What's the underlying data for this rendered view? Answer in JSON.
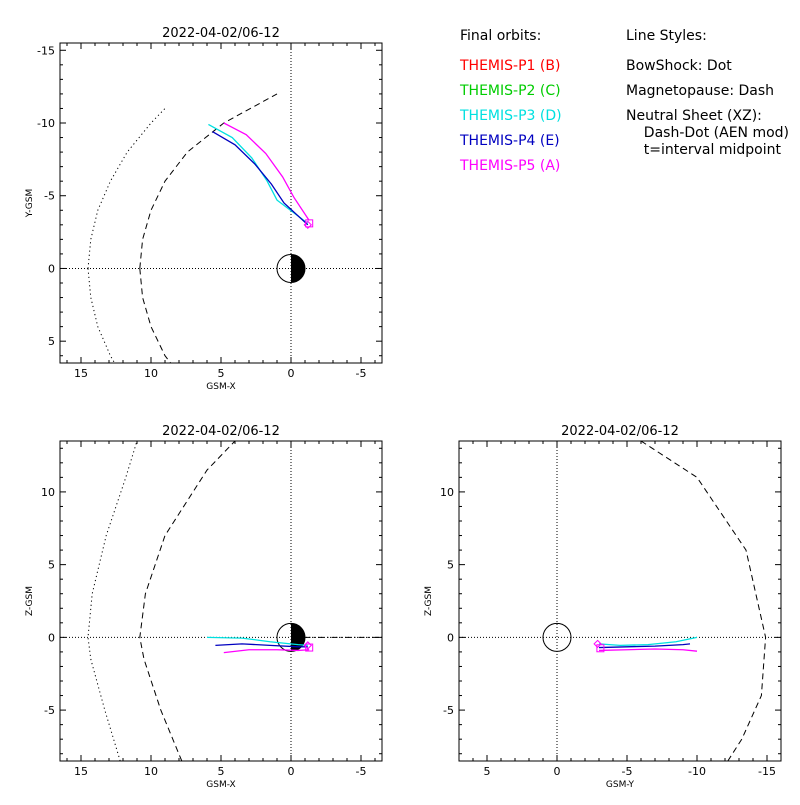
{
  "legend": {
    "orbits_title": "Final orbits:",
    "probes": [
      {
        "label": "THEMIS-P1 (B)",
        "color": "#ff0000"
      },
      {
        "label": "THEMIS-P2 (C)",
        "color": "#00cc00"
      },
      {
        "label": "THEMIS-P3 (D)",
        "color": "#00e0e0"
      },
      {
        "label": "THEMIS-P4 (E)",
        "color": "#0000c0"
      },
      {
        "label": "THEMIS-P5 (A)",
        "color": "#ff00ff"
      }
    ],
    "styles_title": "Line Styles:",
    "styles": [
      "BowShock: Dot",
      "Magnetopause: Dash",
      "Neutral Sheet (XZ):",
      "  Dash-Dot (AEN mod)",
      "  t=interval midpoint"
    ]
  },
  "chart_data": [
    {
      "type": "line",
      "title": "2022-04-02/06-12",
      "xlabel": "GSM-X",
      "ylabel": "Y-GSM",
      "xlim": [
        16.5,
        -6.5
      ],
      "ylim": [
        6.5,
        -15.5
      ],
      "xticks": [
        15,
        10,
        5,
        0,
        -5
      ],
      "yticks": [
        -15,
        -10,
        -5,
        0,
        5
      ],
      "earth": "xsun",
      "boundaries": [
        {
          "name": "bowshock",
          "style": "dot",
          "x": [
            14.5,
            14.3,
            13.8,
            12.9,
            11.7,
            10.0,
            9.0
          ],
          "y": [
            0,
            -2,
            -4,
            -6,
            -8,
            -10,
            -11
          ],
          "mirror": true
        },
        {
          "name": "magnetopause",
          "style": "dash",
          "x": [
            10.8,
            10.6,
            10.0,
            9.0,
            7.4,
            4.8,
            1.0
          ],
          "y": [
            0,
            -2,
            -4,
            -6,
            -8,
            -10,
            -12
          ],
          "mirror": true
        }
      ],
      "series": [
        {
          "probe": "P3",
          "color": "#00e0e0",
          "x": [
            5.9,
            4.2,
            2.8,
            1.7,
            1.0,
            -1.2
          ],
          "y": [
            -9.9,
            -9.0,
            -7.6,
            -6.0,
            -4.7,
            -3.1
          ]
        },
        {
          "probe": "P4",
          "color": "#0000c0",
          "x": [
            5.6,
            4.0,
            2.6,
            1.4,
            0.5,
            -1.2
          ],
          "y": [
            -9.4,
            -8.5,
            -7.2,
            -5.8,
            -4.5,
            -3.0
          ]
        },
        {
          "probe": "P5",
          "color": "#ff00ff",
          "x": [
            4.8,
            3.2,
            1.8,
            0.6,
            -0.2,
            -1.3
          ],
          "y": [
            -10.0,
            -9.2,
            -7.9,
            -6.3,
            -4.9,
            -3.3
          ]
        }
      ],
      "markers": [
        {
          "shape": "diamond",
          "color": "#ff00ff",
          "x": -1.2,
          "y": -3.0
        },
        {
          "shape": "square",
          "color": "#ff00ff",
          "x": -1.3,
          "y": -3.1
        }
      ]
    },
    {
      "type": "line",
      "title": "2022-04-02/06-12",
      "xlabel": "GSM-X",
      "ylabel": "Z-GSM",
      "xlim": [
        16.5,
        -6.5
      ],
      "ylim": [
        -8.5,
        13.5
      ],
      "xticks": [
        15,
        10,
        5,
        0,
        -5
      ],
      "yticks": [
        -5,
        0,
        5,
        10
      ],
      "earth": "xsun",
      "boundaries": [
        {
          "name": "bowshock",
          "style": "dot",
          "x": [
            12.2,
            13.3,
            14.3,
            14.5,
            14.2,
            13.2,
            11.8,
            11.0
          ],
          "y": [
            -8.5,
            -5.0,
            -1.5,
            0,
            3.0,
            7.0,
            11.0,
            13.5
          ],
          "mirror": false
        },
        {
          "name": "magnetopause",
          "style": "dash",
          "x": [
            7.8,
            9.3,
            10.5,
            10.8,
            10.4,
            9.0,
            6.0,
            4.0
          ],
          "y": [
            -8.5,
            -5.0,
            -1.5,
            0,
            3.0,
            7.0,
            11.5,
            13.5
          ],
          "mirror": false
        },
        {
          "name": "neutral-sheet",
          "style": "dashdot",
          "x": [
            0,
            -6.5
          ],
          "y": [
            0,
            0
          ],
          "mirror": false
        }
      ],
      "series": [
        {
          "probe": "P3",
          "color": "#00e0e0",
          "x": [
            6.0,
            3.5,
            1.5,
            -0.5,
            -1.2
          ],
          "y": [
            0.0,
            -0.05,
            -0.3,
            -0.5,
            -0.55
          ]
        },
        {
          "probe": "P4",
          "color": "#0000c0",
          "x": [
            5.4,
            3.5,
            1.5,
            -0.5,
            -1.2
          ],
          "y": [
            -0.55,
            -0.45,
            -0.55,
            -0.65,
            -0.65
          ]
        },
        {
          "probe": "P5",
          "color": "#ff00ff",
          "x": [
            4.8,
            3.0,
            1.0,
            -0.5,
            -1.3
          ],
          "y": [
            -1.05,
            -0.85,
            -0.85,
            -0.9,
            -0.85
          ]
        }
      ],
      "markers": [
        {
          "shape": "diamond",
          "color": "#ff00ff",
          "x": -1.2,
          "y": -0.55
        },
        {
          "shape": "square",
          "color": "#ff00ff",
          "x": -1.3,
          "y": -0.7
        }
      ]
    },
    {
      "type": "line",
      "title": "2022-04-02/06-12",
      "xlabel": "GSM-Y",
      "ylabel": "Z-GSM",
      "xlim": [
        7,
        -16
      ],
      "ylim": [
        -8.5,
        13.5
      ],
      "xticks": [
        5,
        0,
        -5,
        -10,
        -15
      ],
      "yticks": [
        -5,
        0,
        5,
        10
      ],
      "earth": "plain",
      "boundaries": [
        {
          "name": "magnetopause",
          "style": "dash",
          "x": [
            -6.0,
            -10.0,
            -13.5,
            -14.9,
            -14.6,
            -13.2,
            -12.2
          ],
          "y": [
            13.5,
            11.0,
            6.0,
            0,
            -4.0,
            -7.0,
            -8.5
          ],
          "mirror": false
        }
      ],
      "series": [
        {
          "probe": "P3",
          "color": "#00e0e0",
          "x": [
            -3.0,
            -4.5,
            -6.5,
            -8.5,
            -10.0
          ],
          "y": [
            -0.45,
            -0.55,
            -0.5,
            -0.3,
            0.0
          ]
        },
        {
          "probe": "P4",
          "color": "#0000c0",
          "x": [
            -3.0,
            -5.0,
            -7.0,
            -9.0,
            -9.5
          ],
          "y": [
            -0.7,
            -0.65,
            -0.6,
            -0.5,
            -0.45
          ]
        },
        {
          "probe": "P5",
          "color": "#ff00ff",
          "x": [
            -3.0,
            -5.0,
            -7.0,
            -9.0,
            -10.0
          ],
          "y": [
            -0.9,
            -0.85,
            -0.8,
            -0.85,
            -0.95
          ]
        }
      ],
      "markers": [
        {
          "shape": "diamond",
          "color": "#ff00ff",
          "x": -2.9,
          "y": -0.45
        },
        {
          "shape": "square",
          "color": "#ff00ff",
          "x": -3.1,
          "y": -0.75
        }
      ]
    }
  ]
}
